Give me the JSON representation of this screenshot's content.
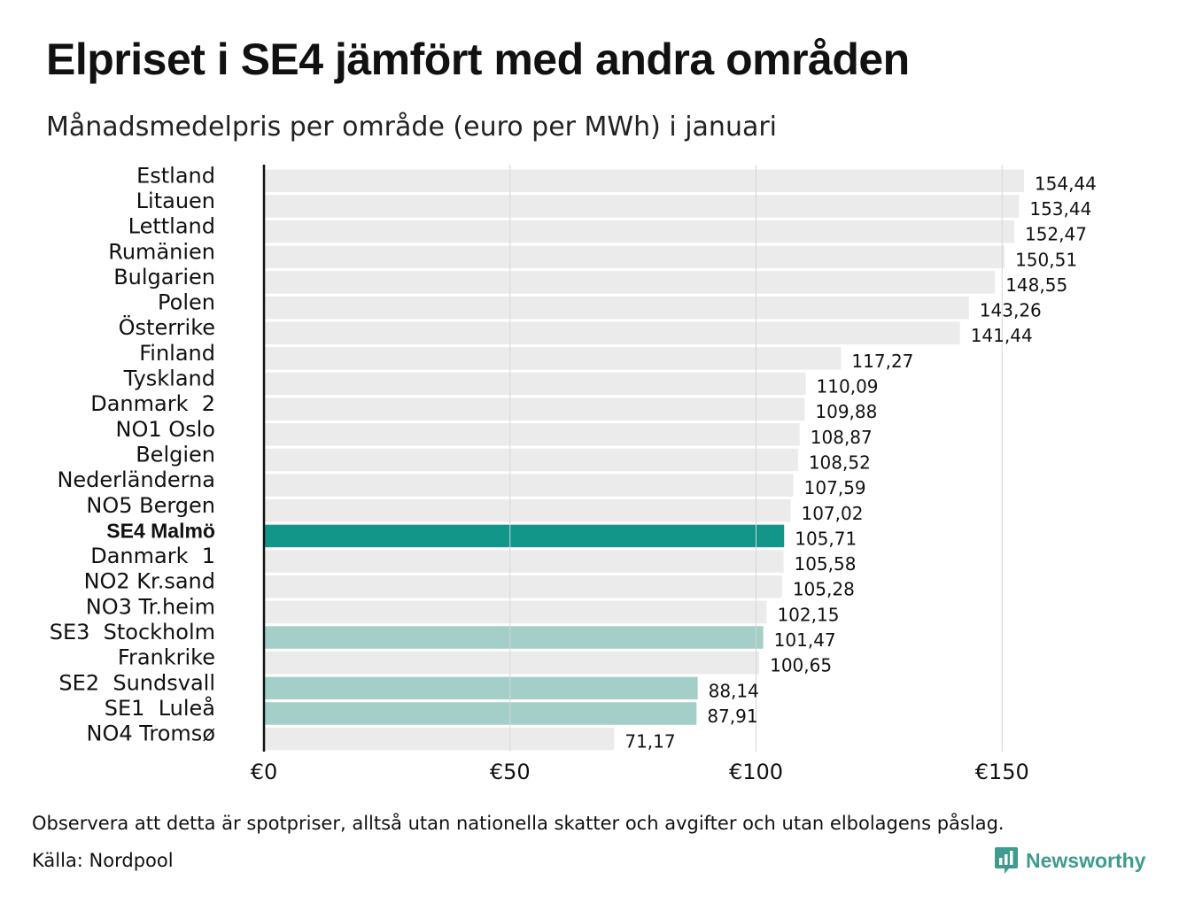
{
  "title": "Elpriset i SE4 jämfört med andra områden",
  "subtitle": "Månadsmedelpris per område (euro per MWh) i januari",
  "footnote": "Observera att detta är spotpriser, alltså utan nationella skatter och avgifter och utan elbolagens påslag.",
  "source": "Källa: Nordpool",
  "brand": {
    "name": "Newsworthy",
    "icon": "newsworthy-logo-icon"
  },
  "colors": {
    "default": "#ebebeb",
    "highlight": "#12968a",
    "swedish": "#a4cfc9",
    "grid": "#d5d5d5",
    "axis": "#111111",
    "brand": "#3f9b8f"
  },
  "chart_data": {
    "type": "bar",
    "orientation": "horizontal",
    "title": "Elpriset i SE4 jämfört med andra områden",
    "xlabel": "",
    "ylabel": "",
    "xlim": [
      0,
      160
    ],
    "xticks": [
      0,
      50,
      100,
      150
    ],
    "xtick_labels": [
      "€0",
      "€50",
      "€100",
      "€150"
    ],
    "grid": true,
    "categories": [
      "Estland",
      "Litauen",
      "Lettland",
      "Rumänien",
      "Bulgarien",
      "Polen",
      "Österrike",
      "Finland",
      "Tyskland",
      "Danmark  2",
      "NO1 Oslo",
      "Belgien",
      "Nederländerna",
      "NO5 Bergen",
      "SE4 Malmö",
      "Danmark  1",
      "NO2 Kr.sand",
      "NO3 Tr.heim",
      "SE3  Stockholm",
      "Frankrike",
      "SE2  Sundsvall",
      "SE1  Luleå",
      "NO4 Tromsø"
    ],
    "values": [
      154.44,
      153.44,
      152.47,
      150.51,
      148.55,
      143.26,
      141.44,
      117.27,
      110.09,
      109.88,
      108.87,
      108.52,
      107.59,
      107.02,
      105.71,
      105.58,
      105.28,
      102.15,
      101.47,
      100.65,
      88.14,
      87.91,
      71.17
    ],
    "value_labels": [
      "154,44",
      "153,44",
      "152,47",
      "150,51",
      "148,55",
      "143,26",
      "141,44",
      "117,27",
      "110,09",
      "109,88",
      "108,87",
      "108,52",
      "107,59",
      "107,02",
      "105,71",
      "105,58",
      "105,28",
      "102,15",
      "101,47",
      "100,65",
      "88,14",
      "87,91",
      "71,17"
    ],
    "bar_style": [
      "default",
      "default",
      "default",
      "default",
      "default",
      "default",
      "default",
      "default",
      "default",
      "default",
      "default",
      "default",
      "default",
      "default",
      "highlight",
      "default",
      "default",
      "default",
      "swedish",
      "default",
      "swedish",
      "swedish",
      "default"
    ],
    "bold_categories": [
      "SE4 Malmö"
    ]
  }
}
